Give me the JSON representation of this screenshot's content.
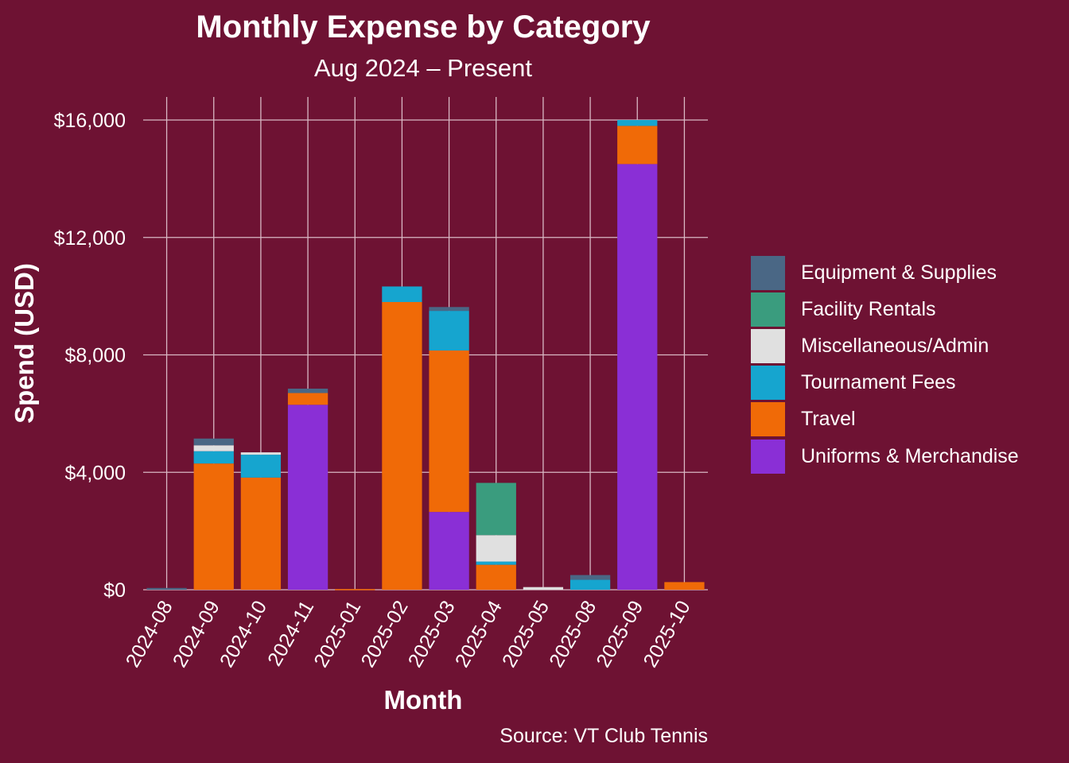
{
  "chart_data": {
    "type": "bar",
    "stacked": true,
    "title": "Monthly Expense by Category",
    "subtitle": "Aug 2024 – Present",
    "xlabel": "Month",
    "ylabel": "Spend (USD)",
    "source": "Source: VT Club Tennis",
    "ylim": [
      0,
      16800
    ],
    "yticks": [
      0,
      4000,
      8000,
      12000,
      16000
    ],
    "ytick_labels": [
      "$0",
      "$4,000",
      "$8,000",
      "$12,000",
      "$16,000"
    ],
    "grid": true,
    "legend_position": "right",
    "categories": [
      "2024-08",
      "2024-09",
      "2024-10",
      "2024-11",
      "2025-01",
      "2025-02",
      "2025-03",
      "2025-04",
      "2025-05",
      "2025-08",
      "2025-09",
      "2025-10"
    ],
    "series": [
      {
        "name": "Uniforms & Merchandise",
        "color": "#8a2fd6",
        "values": [
          0,
          0,
          0,
          6300,
          0,
          0,
          2650,
          0,
          0,
          0,
          14500,
          0
        ]
      },
      {
        "name": "Travel",
        "color": "#f06a07",
        "values": [
          0,
          4300,
          3820,
          400,
          25,
          9800,
          5500,
          850,
          0,
          0,
          1300,
          260
        ]
      },
      {
        "name": "Tournament Fees",
        "color": "#16a5cf",
        "values": [
          0,
          420,
          780,
          0,
          0,
          530,
          1350,
          110,
          0,
          340,
          200,
          0
        ]
      },
      {
        "name": "Miscellaneous/Admin",
        "color": "#e0e0e0",
        "values": [
          0,
          200,
          80,
          0,
          0,
          0,
          0,
          900,
          90,
          0,
          0,
          0
        ]
      },
      {
        "name": "Facility Rentals",
        "color": "#3a9c7e",
        "values": [
          0,
          0,
          0,
          0,
          0,
          0,
          0,
          1780,
          0,
          0,
          0,
          0
        ]
      },
      {
        "name": "Equipment & Supplies",
        "color": "#4a6785",
        "values": [
          60,
          230,
          0,
          150,
          0,
          0,
          130,
          0,
          0,
          160,
          0,
          0
        ]
      }
    ],
    "legend_order": [
      "Equipment & Supplies",
      "Facility Rentals",
      "Miscellaneous/Admin",
      "Tournament Fees",
      "Travel",
      "Uniforms & Merchandise"
    ]
  },
  "colors": {
    "background": "#6e1233",
    "grid": "#d9b8c4",
    "text": "#ffffff"
  }
}
